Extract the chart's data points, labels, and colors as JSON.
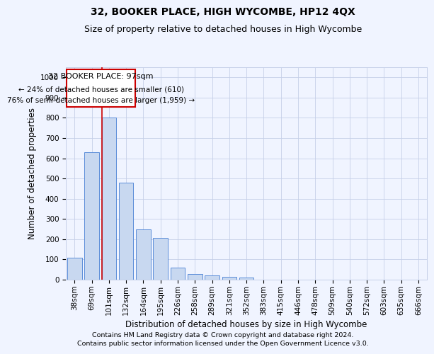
{
  "title": "32, BOOKER PLACE, HIGH WYCOMBE, HP12 4QX",
  "subtitle": "Size of property relative to detached houses in High Wycombe",
  "xlabel": "Distribution of detached houses by size in High Wycombe",
  "ylabel": "Number of detached properties",
  "categories": [
    "38sqm",
    "69sqm",
    "101sqm",
    "132sqm",
    "164sqm",
    "195sqm",
    "226sqm",
    "258sqm",
    "289sqm",
    "321sqm",
    "352sqm",
    "383sqm",
    "415sqm",
    "446sqm",
    "478sqm",
    "509sqm",
    "540sqm",
    "572sqm",
    "603sqm",
    "635sqm",
    "666sqm"
  ],
  "values": [
    110,
    630,
    800,
    480,
    250,
    205,
    60,
    28,
    20,
    15,
    12,
    0,
    0,
    0,
    0,
    0,
    0,
    0,
    0,
    0,
    0
  ],
  "bar_color": "#c8d8f0",
  "bar_edge_color": "#5b8dd9",
  "property_index": 2,
  "property_label": "32 BOOKER PLACE: 97sqm",
  "annotation_line1": "← 24% of detached houses are smaller (610)",
  "annotation_line2": "76% of semi-detached houses are larger (1,959) →",
  "annotation_box_color": "#cc0000",
  "vline_color": "#cc0000",
  "grid_color": "#c5cfe8",
  "bg_color": "#f0f4ff",
  "ylim": [
    0,
    1050
  ],
  "yticks": [
    0,
    100,
    200,
    300,
    400,
    500,
    600,
    700,
    800,
    900,
    1000
  ],
  "footnote1": "Contains HM Land Registry data © Crown copyright and database right 2024.",
  "footnote2": "Contains public sector information licensed under the Open Government Licence v3.0.",
  "title_fontsize": 10,
  "subtitle_fontsize": 9,
  "axis_label_fontsize": 8.5,
  "tick_fontsize": 7.5,
  "annotation_fontsize": 8,
  "footnote_fontsize": 6.8
}
